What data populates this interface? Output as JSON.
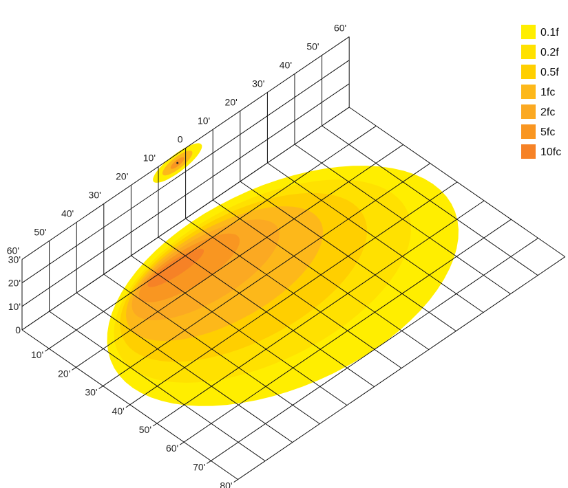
{
  "chart_data": {
    "type": "heatmap",
    "title": "",
    "colors": {
      "0.1fc": "#FFEE00",
      "0.2fc": "#FFE100",
      "0.5fc": "#FFCF00",
      "1fc": "#FDB81A",
      "2fc": "#FBA922",
      "5fc": "#F99621",
      "10fc": "#F68226"
    },
    "legend": {
      "placement": "top-right",
      "items": [
        {
          "label": "0.1f",
          "level": "0.1fc"
        },
        {
          "label": "0.2f",
          "level": "0.2fc"
        },
        {
          "label": "0.5f",
          "level": "0.5fc"
        },
        {
          "label": "1fc",
          "level": "1fc"
        },
        {
          "label": "2fc",
          "level": "2fc"
        },
        {
          "label": "5fc",
          "level": "5fc"
        },
        {
          "label": "10fc",
          "level": "10fc"
        }
      ]
    },
    "axes": {
      "wall_horizontal_ticks": [
        "60'",
        "50'",
        "40'",
        "30'",
        "20'",
        "10'",
        "0",
        "10'",
        "20'",
        "30'",
        "40'",
        "50'",
        "60'"
      ],
      "height_ticks": [
        "30'",
        "20'",
        "10'",
        "0"
      ],
      "depth_ticks": [
        "10'",
        "20'",
        "30'",
        "40'",
        "50'",
        "60'",
        "70'",
        "80'"
      ],
      "height_range_ft": [
        0,
        30
      ],
      "wall_horizontal_range_ft": [
        -60,
        60
      ],
      "depth_range_ft": [
        0,
        80
      ]
    },
    "grid": true,
    "floor_contours": [
      {
        "level": "0.1fc",
        "description": "outer illuminance region on floor",
        "extent_wall_ft": [
          -55,
          55
        ],
        "extent_depth_ft": [
          2,
          70
        ]
      },
      {
        "level": "0.2fc",
        "extent_wall_ft": [
          -50,
          45
        ],
        "extent_depth_ft": [
          4,
          58
        ]
      },
      {
        "level": "0.5fc",
        "extent_wall_ft": [
          -45,
          35
        ],
        "extent_depth_ft": [
          5,
          48
        ]
      },
      {
        "level": "1fc",
        "extent_wall_ft": [
          -40,
          25
        ],
        "extent_depth_ft": [
          6,
          38
        ]
      },
      {
        "level": "2fc",
        "extent_wall_ft": [
          -35,
          15
        ],
        "extent_depth_ft": [
          7,
          28
        ]
      },
      {
        "level": "5fc",
        "extent_wall_ft": [
          -30,
          5
        ],
        "extent_depth_ft": [
          8,
          20
        ]
      },
      {
        "level": "10fc",
        "extent_wall_ft": [
          -25,
          -5
        ],
        "extent_depth_ft": [
          9,
          14
        ]
      }
    ],
    "wall_spot": {
      "description": "small illuminated spot on wall near fixture",
      "center_wall_ft": -3,
      "center_height_ft": 26
    }
  }
}
